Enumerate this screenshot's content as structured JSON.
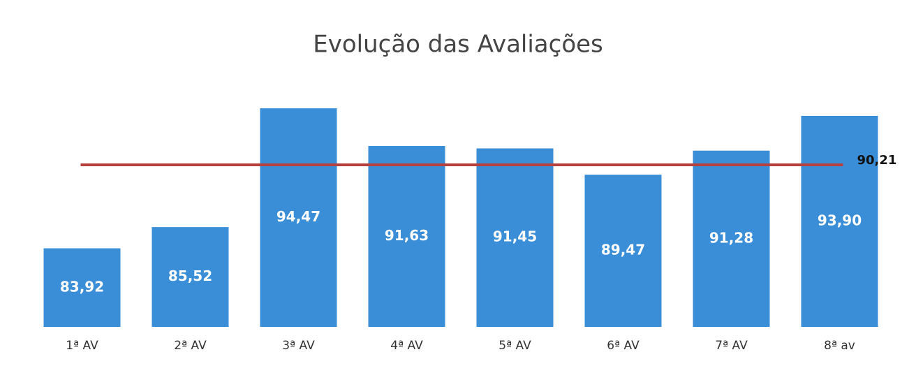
{
  "chart_data": {
    "type": "bar",
    "title": "Evolução das Avaliações",
    "categories": [
      "1ª AV",
      "2ª AV",
      "3ª AV",
      "4ª AV",
      "5ª AV",
      "6ª AV",
      "7ª AV",
      "8ª av"
    ],
    "values": [
      83.92,
      85.52,
      94.47,
      91.63,
      91.45,
      89.47,
      91.28,
      93.9
    ],
    "value_labels": [
      "83,92",
      "85,52",
      "94,47",
      "91,63",
      "91,45",
      "89,47",
      "91,28",
      "93,90"
    ],
    "color": "#3a8ed8",
    "ylim": [
      78,
      96
    ],
    "reference_line": {
      "value": 90.21,
      "value_label": "90,21",
      "color": "#b5403e"
    }
  }
}
